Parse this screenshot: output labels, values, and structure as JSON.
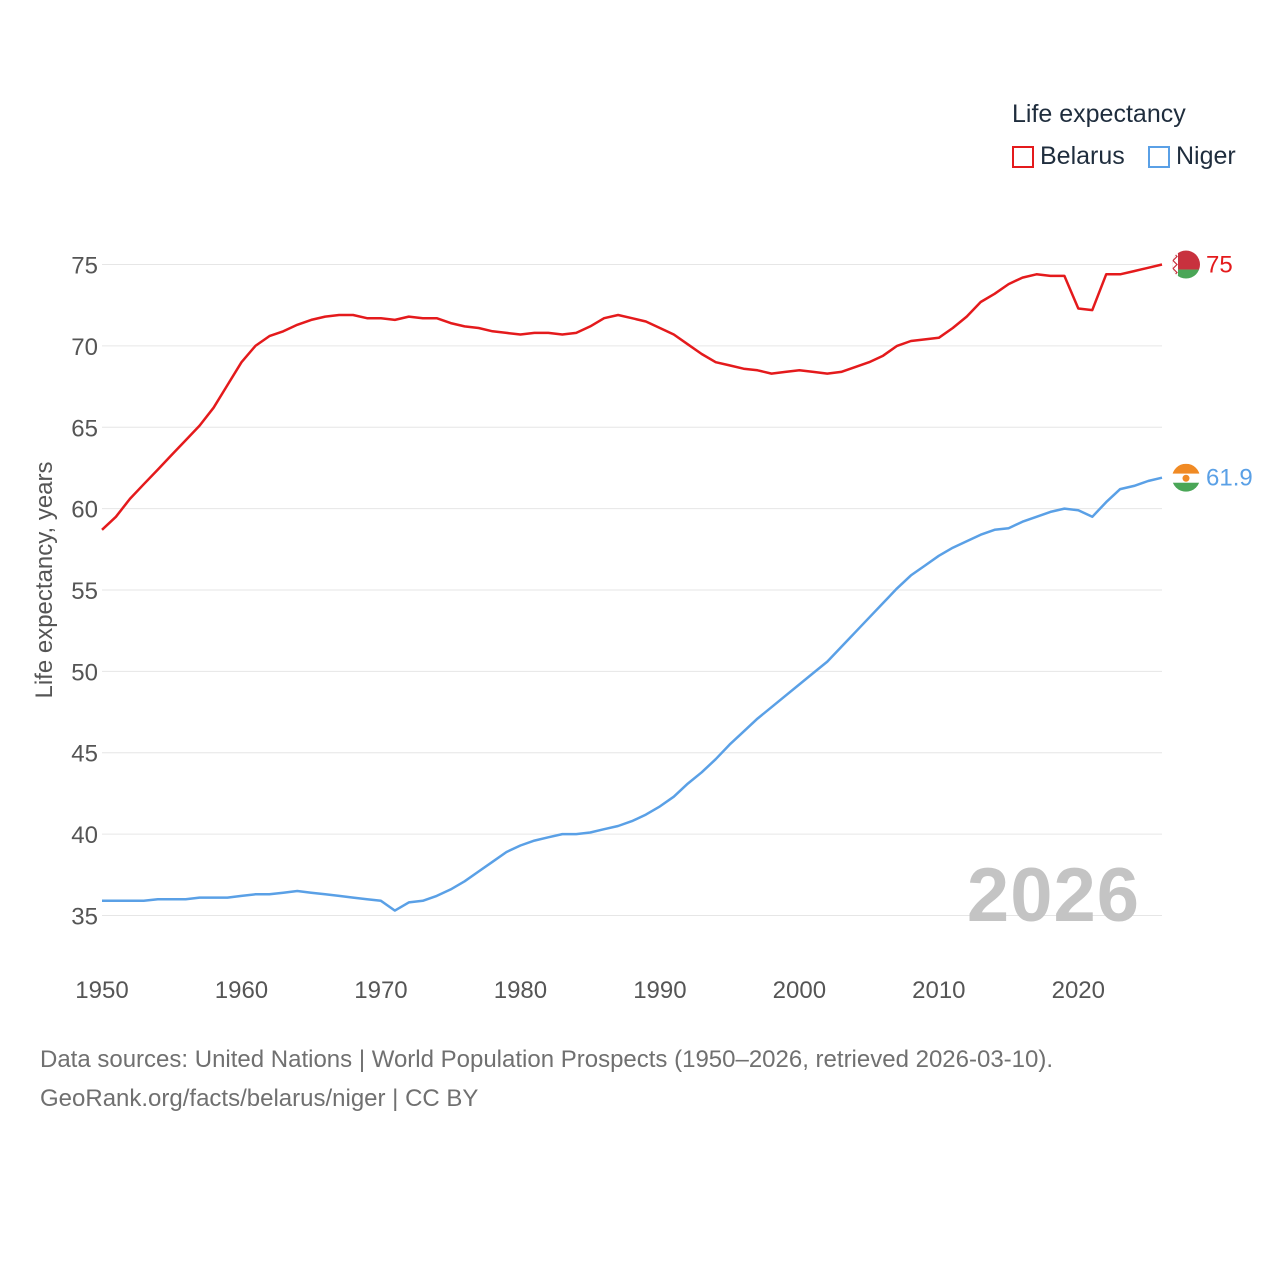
{
  "legend": {
    "title": "Life expectancy",
    "items": [
      {
        "label": "Belarus",
        "color": "#e41a1c"
      },
      {
        "label": "Niger",
        "color": "#5aa0e6"
      }
    ]
  },
  "current_year": "2026",
  "end_labels": {
    "belarus": "75",
    "niger": "61.9"
  },
  "footer": {
    "line1": "Data sources: United Nations | World Population Prospects (1950–2026, retrieved 2026-03-10).",
    "line2": "GeoRank.org/facts/belarus/niger | CC BY"
  },
  "colors": {
    "belarus": "#e41a1c",
    "niger": "#5aa0e6",
    "grid": "#e6e6e6",
    "tick": "#555555"
  },
  "chart_data": {
    "type": "line",
    "title": "Life expectancy",
    "xlabel": "",
    "ylabel": "Life expectancy, years",
    "xlim": [
      1950,
      2026
    ],
    "ylim": [
      33,
      77
    ],
    "xticks": [
      1950,
      1960,
      1970,
      1980,
      1990,
      2000,
      2010,
      2020
    ],
    "yticks": [
      35,
      40,
      45,
      50,
      55,
      60,
      65,
      70,
      75
    ],
    "x": [
      1950,
      1951,
      1952,
      1953,
      1954,
      1955,
      1956,
      1957,
      1958,
      1959,
      1960,
      1961,
      1962,
      1963,
      1964,
      1965,
      1966,
      1967,
      1968,
      1969,
      1970,
      1971,
      1972,
      1973,
      1974,
      1975,
      1976,
      1977,
      1978,
      1979,
      1980,
      1981,
      1982,
      1983,
      1984,
      1985,
      1986,
      1987,
      1988,
      1989,
      1990,
      1991,
      1992,
      1993,
      1994,
      1995,
      1996,
      1997,
      1998,
      1999,
      2000,
      2001,
      2002,
      2003,
      2004,
      2005,
      2006,
      2007,
      2008,
      2009,
      2010,
      2011,
      2012,
      2013,
      2014,
      2015,
      2016,
      2017,
      2018,
      2019,
      2020,
      2021,
      2022,
      2023,
      2024,
      2025,
      2026
    ],
    "series": [
      {
        "name": "Belarus",
        "color": "#e41a1c",
        "values": [
          58.7,
          59.5,
          60.6,
          61.5,
          62.4,
          63.3,
          64.2,
          65.1,
          66.2,
          67.6,
          69.0,
          70.0,
          70.6,
          70.9,
          71.3,
          71.6,
          71.8,
          71.9,
          71.9,
          71.7,
          71.7,
          71.6,
          71.8,
          71.7,
          71.7,
          71.4,
          71.2,
          71.1,
          70.9,
          70.8,
          70.7,
          70.8,
          70.8,
          70.7,
          70.8,
          71.2,
          71.7,
          71.9,
          71.7,
          71.5,
          71.1,
          70.7,
          70.1,
          69.5,
          69.0,
          68.8,
          68.6,
          68.5,
          68.3,
          68.4,
          68.5,
          68.4,
          68.3,
          68.4,
          68.7,
          69.0,
          69.4,
          70.0,
          70.3,
          70.4,
          70.5,
          71.1,
          71.8,
          72.7,
          73.2,
          73.8,
          74.2,
          74.4,
          74.3,
          74.3,
          72.3,
          72.2,
          74.4,
          74.4,
          74.6,
          74.8,
          75.0
        ]
      },
      {
        "name": "Niger",
        "color": "#5aa0e6",
        "values": [
          35.9,
          35.9,
          35.9,
          35.9,
          36.0,
          36.0,
          36.0,
          36.1,
          36.1,
          36.1,
          36.2,
          36.3,
          36.3,
          36.4,
          36.5,
          36.4,
          36.3,
          36.2,
          36.1,
          36.0,
          35.9,
          35.3,
          35.8,
          35.9,
          36.2,
          36.6,
          37.1,
          37.7,
          38.3,
          38.9,
          39.3,
          39.6,
          39.8,
          40.0,
          40.0,
          40.1,
          40.3,
          40.5,
          40.8,
          41.2,
          41.7,
          42.3,
          43.1,
          43.8,
          44.6,
          45.5,
          46.3,
          47.1,
          47.8,
          48.5,
          49.2,
          49.9,
          50.6,
          51.5,
          52.4,
          53.3,
          54.2,
          55.1,
          55.9,
          56.5,
          57.1,
          57.6,
          58.0,
          58.4,
          58.7,
          58.8,
          59.2,
          59.5,
          59.8,
          60.0,
          59.9,
          59.5,
          60.4,
          61.2,
          61.4,
          61.7,
          61.9
        ]
      }
    ]
  }
}
